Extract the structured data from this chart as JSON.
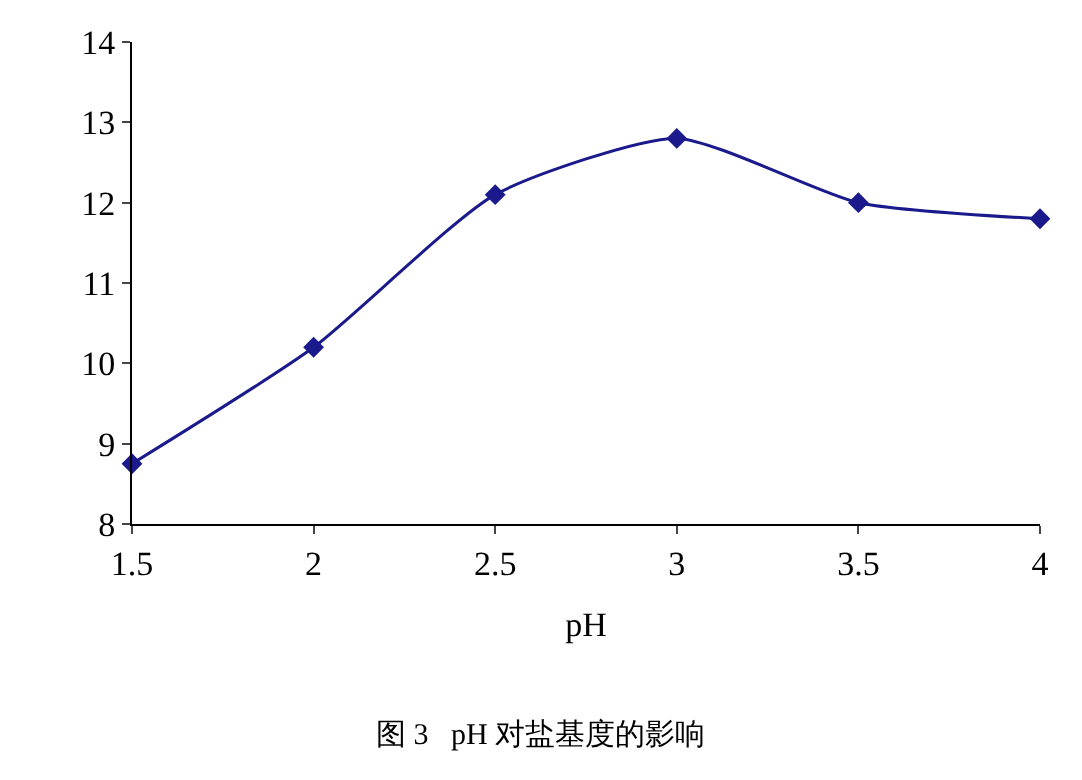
{
  "chart_data": {
    "type": "line",
    "xlabel": "pH",
    "annotations": [
      "图 3   pH 对盐基度的影响"
    ],
    "x": [
      1.5,
      2,
      2.5,
      3,
      3.5,
      4
    ],
    "series": [
      {
        "color": "#1a1a8c",
        "values": [
          8.75,
          10.2,
          12.1,
          12.8,
          12.0,
          11.8
        ]
      }
    ],
    "xlim": [
      1.5,
      4
    ],
    "xticks": [
      1.5,
      2,
      2.5,
      3,
      3.5,
      4
    ],
    "ylim": [
      8,
      14
    ],
    "yticks": [
      8,
      9,
      10,
      11,
      12,
      13,
      14
    ],
    "grid": false,
    "marker": "diamond",
    "line_style": "solid"
  }
}
